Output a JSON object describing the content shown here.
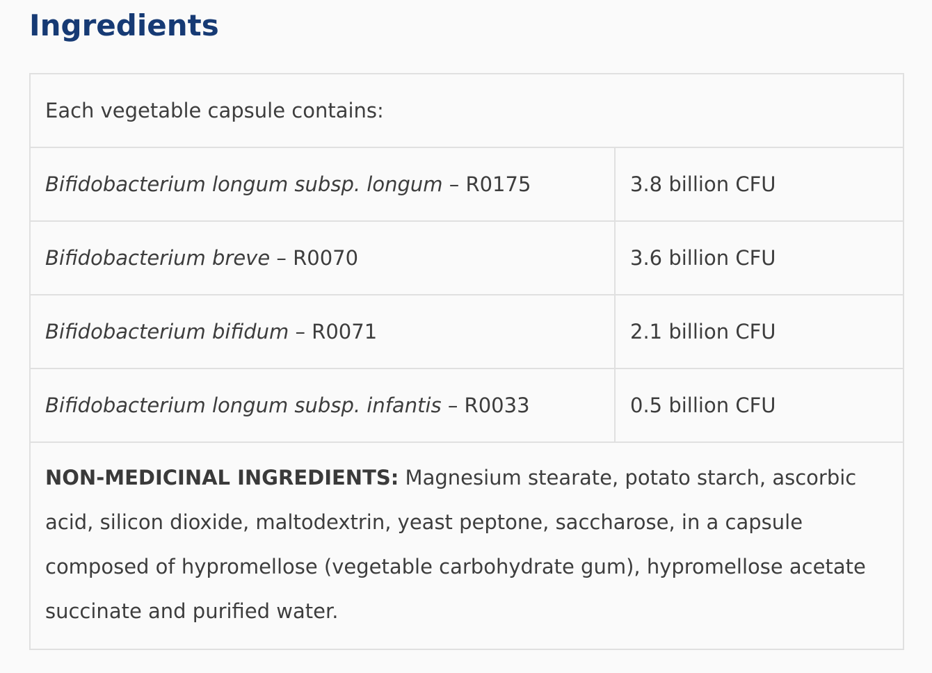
{
  "title": "Ingredients",
  "intro": "Each vegetable capsule contains:",
  "rows": [
    {
      "species": "Bifidobacterium longum subsp. longum",
      "strain": " – R0175",
      "amount": "3.8 billion CFU"
    },
    {
      "species": "Bifidobacterium breve",
      "strain": " – R0070",
      "amount": "3.6 billion CFU"
    },
    {
      "species": "Bifidobacterium bifidum",
      "strain": " – R0071",
      "amount": "2.1 billion CFU"
    },
    {
      "species": "Bifidobacterium longum subsp. infantis",
      "strain": " – R0033",
      "amount": "0.5 billion CFU"
    }
  ],
  "non_medicinal": {
    "label": "NON-MEDICINAL INGREDIENTS:",
    "text": " Magnesium stearate, potato starch, ascorbic acid, silicon dioxide, maltodextrin, yeast peptone, saccharose, in a capsule composed of hypromellose (vegetable carbohydrate gum), hypromellose acetate succinate and purified water."
  }
}
